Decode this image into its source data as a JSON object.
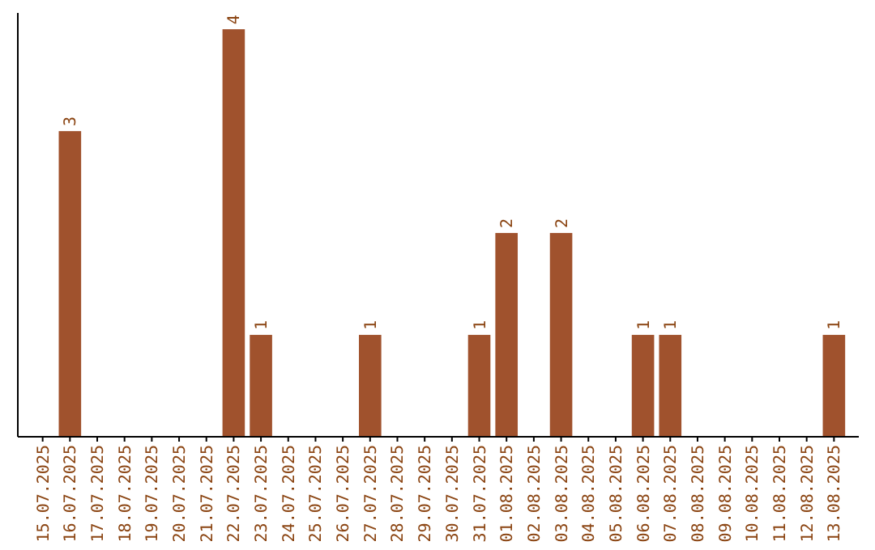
{
  "chart_data": {
    "type": "bar",
    "categories": [
      "15.07.2025",
      "16.07.2025",
      "17.07.2025",
      "18.07.2025",
      "19.07.2025",
      "20.07.2025",
      "21.07.2025",
      "22.07.2025",
      "23.07.2025",
      "24.07.2025",
      "25.07.2025",
      "26.07.2025",
      "27.07.2025",
      "28.07.2025",
      "29.07.2025",
      "30.07.2025",
      "31.07.2025",
      "01.08.2025",
      "02.08.2025",
      "03.08.2025",
      "04.08.2025",
      "05.08.2025",
      "06.08.2025",
      "07.08.2025",
      "08.08.2025",
      "09.08.2025",
      "10.08.2025",
      "11.08.2025",
      "12.08.2025",
      "13.08.2025"
    ],
    "values": [
      0,
      3,
      0,
      0,
      0,
      0,
      0,
      4,
      1,
      0,
      0,
      0,
      1,
      0,
      0,
      0,
      1,
      2,
      0,
      2,
      0,
      0,
      1,
      1,
      0,
      0,
      0,
      0,
      0,
      1
    ],
    "value_labels": [
      null,
      "3",
      null,
      null,
      null,
      null,
      null,
      "4",
      "1",
      null,
      null,
      null,
      "1",
      null,
      null,
      null,
      "1",
      "2",
      null,
      "2",
      null,
      null,
      "1",
      "1",
      null,
      null,
      null,
      null,
      null,
      "1"
    ],
    "color": "#a0522d",
    "tick_labels": "x",
    "grid": false
  }
}
